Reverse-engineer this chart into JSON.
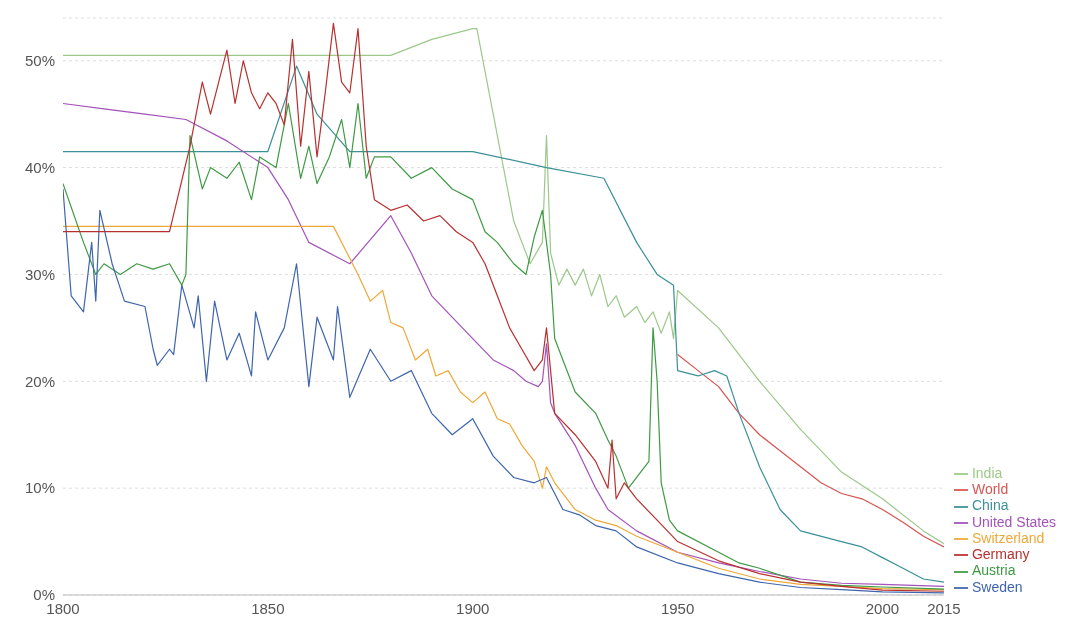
{
  "chart_data": {
    "type": "line",
    "xlim": [
      1800,
      2015
    ],
    "xticks": [
      1800,
      1850,
      1900,
      1950,
      2000,
      2015
    ],
    "ylim": [
      0,
      54
    ],
    "yticks": [
      {
        "value": 0,
        "label": "0%"
      },
      {
        "value": 10,
        "label": "10%"
      },
      {
        "value": 20,
        "label": "20%"
      },
      {
        "value": 30,
        "label": "30%"
      },
      {
        "value": 40,
        "label": "40%"
      },
      {
        "value": 50,
        "label": "50%"
      }
    ],
    "grid": "y",
    "legend": "right",
    "marker": "none",
    "line_style": "solid",
    "series": [
      {
        "name": "India",
        "color": "#9cc88a",
        "x": [
          1800,
          1880,
          1890,
          1900,
          1901,
          1905,
          1910,
          1914,
          1917,
          1918,
          1919,
          1921,
          1923,
          1925,
          1927,
          1929,
          1931,
          1933,
          1935,
          1937,
          1940,
          1942,
          1944,
          1946,
          1948,
          1949,
          1950,
          1960,
          1970,
          1980,
          1990,
          2000,
          2010,
          2015
        ],
        "values": [
          50.5,
          50.5,
          52,
          53,
          53,
          45,
          35,
          31,
          33,
          43,
          32,
          29,
          30.5,
          29,
          30.5,
          28,
          30,
          27,
          28,
          26,
          27,
          25.5,
          26.5,
          24.5,
          26.5,
          24,
          28.5,
          25,
          20,
          15.5,
          11.5,
          9,
          6,
          4.8
        ]
      },
      {
        "name": "World",
        "color": "#d65452",
        "x": [
          1950,
          1955,
          1960,
          1965,
          1970,
          1975,
          1980,
          1985,
          1990,
          1995,
          2000,
          2005,
          2010,
          2015
        ],
        "values": [
          22.5,
          21,
          19.5,
          17,
          15,
          13.5,
          12,
          10.5,
          9.5,
          9,
          8,
          6.8,
          5.5,
          4.5
        ]
      },
      {
        "name": "China",
        "color": "#3b9099",
        "x": [
          1800,
          1850,
          1857,
          1862,
          1870,
          1900,
          1918,
          1932,
          1940,
          1945,
          1949,
          1950,
          1955,
          1959,
          1962,
          1965,
          1970,
          1975,
          1980,
          1990,
          1995,
          2000,
          2005,
          2010,
          2015
        ],
        "values": [
          41.5,
          41.5,
          49.5,
          45,
          41.5,
          41.5,
          40,
          39,
          33,
          30,
          29,
          21,
          20.5,
          21,
          20.5,
          17,
          12,
          8,
          6,
          5,
          4.5,
          3.5,
          2.5,
          1.5,
          1.2
        ]
      },
      {
        "name": "United States",
        "color": "#a352b8",
        "x": [
          1800,
          1810,
          1820,
          1830,
          1840,
          1850,
          1855,
          1860,
          1870,
          1880,
          1885,
          1890,
          1900,
          1905,
          1910,
          1913,
          1916,
          1917,
          1918,
          1919,
          1920,
          1925,
          1930,
          1933,
          1940,
          1950,
          1960,
          1970,
          1980,
          1990,
          2000,
          2015
        ],
        "values": [
          46,
          45.5,
          45,
          44.5,
          42.5,
          40,
          37,
          33,
          31,
          35.5,
          32,
          28,
          24,
          22,
          21,
          20,
          19.5,
          20,
          23.5,
          18,
          17,
          14,
          10,
          8,
          6,
          4,
          3,
          2.2,
          1.5,
          1.1,
          1,
          0.8
        ]
      },
      {
        "name": "Switzerland",
        "color": "#eea838",
        "x": [
          1800,
          1866,
          1872,
          1875,
          1878,
          1880,
          1883,
          1886,
          1889,
          1891,
          1894,
          1897,
          1900,
          1903,
          1906,
          1909,
          1912,
          1915,
          1917,
          1918,
          1920,
          1925,
          1930,
          1935,
          1940,
          1950,
          1960,
          1970,
          1980,
          1990,
          2000,
          2015
        ],
        "values": [
          34.5,
          34.5,
          30,
          27.5,
          28.5,
          25.5,
          25,
          22,
          23,
          20.5,
          21,
          19,
          18,
          19,
          16.5,
          16,
          14,
          12.5,
          10,
          12,
          10.5,
          8,
          7,
          6.5,
          5.5,
          4,
          2.5,
          1.5,
          1,
          0.8,
          0.6,
          0.5
        ]
      },
      {
        "name": "Germany",
        "color": "#b8302f",
        "x": [
          1800,
          1826,
          1831,
          1834,
          1836,
          1838,
          1840,
          1842,
          1844,
          1846,
          1848,
          1850,
          1852,
          1854,
          1856,
          1858,
          1860,
          1862,
          1864,
          1866,
          1868,
          1870,
          1872,
          1874,
          1876,
          1880,
          1884,
          1888,
          1892,
          1896,
          1900,
          1903,
          1906,
          1909,
          1912,
          1915,
          1917,
          1918,
          1920,
          1925,
          1930,
          1933,
          1934,
          1935,
          1937,
          1940,
          1945,
          1950,
          1960,
          1970,
          1980,
          1990,
          2000,
          2015
        ],
        "values": [
          34,
          34,
          42,
          48,
          45,
          48,
          51,
          46,
          50,
          47,
          45.5,
          47,
          46,
          44,
          52,
          42,
          49,
          41,
          47,
          53.5,
          48,
          47,
          53,
          42,
          37,
          36,
          36.5,
          35,
          35.5,
          34,
          33,
          31,
          28,
          25,
          23,
          21,
          22,
          25,
          17,
          15,
          12.5,
          10,
          14.5,
          9,
          10.5,
          9,
          7,
          5,
          3.2,
          2,
          1.2,
          0.8,
          0.45,
          0.35
        ]
      },
      {
        "name": "Austria",
        "color": "#3f9a44",
        "x": [
          1800,
          1805,
          1808,
          1810,
          1814,
          1818,
          1822,
          1826,
          1829,
          1830,
          1831,
          1834,
          1836,
          1840,
          1843,
          1846,
          1848,
          1852,
          1855,
          1858,
          1860,
          1862,
          1865,
          1868,
          1870,
          1872,
          1874,
          1876,
          1880,
          1885,
          1890,
          1895,
          1900,
          1903,
          1906,
          1910,
          1913,
          1915,
          1917,
          1919,
          1920,
          1922,
          1925,
          1930,
          1933,
          1935,
          1938,
          1940,
          1943,
          1944,
          1945,
          1946,
          1948,
          1950,
          1960,
          1965,
          1970,
          1980,
          1990,
          2000,
          2015
        ],
        "values": [
          38.5,
          33,
          30,
          31,
          30,
          31,
          30.5,
          31,
          29,
          30,
          43,
          38,
          40,
          39,
          40.5,
          37,
          41,
          40,
          46,
          39,
          42,
          38.5,
          41,
          44.5,
          40,
          46,
          39,
          41,
          41,
          39,
          40,
          38,
          37,
          34,
          33,
          31,
          30,
          33.5,
          36,
          30,
          24,
          22,
          19,
          17,
          14.5,
          13,
          10,
          11,
          12.5,
          25,
          20,
          10.5,
          7,
          6,
          4,
          3,
          2.5,
          1.2,
          0.9,
          0.75,
          0.55
        ]
      },
      {
        "name": "Sweden",
        "color": "#3e65ad",
        "x": [
          1800,
          1802,
          1805,
          1807,
          1808,
          1809,
          1812,
          1815,
          1820,
          1822,
          1823,
          1826,
          1827,
          1829,
          1832,
          1833,
          1835,
          1837,
          1840,
          1843,
          1846,
          1847,
          1850,
          1854,
          1857,
          1860,
          1862,
          1866,
          1867,
          1870,
          1875,
          1880,
          1885,
          1890,
          1895,
          1900,
          1905,
          1910,
          1915,
          1918,
          1922,
          1926,
          1930,
          1935,
          1940,
          1950,
          1960,
          1970,
          1980,
          1990,
          2000,
          2015
        ],
        "values": [
          38,
          28,
          26.5,
          33,
          27.5,
          36,
          31,
          27.5,
          27,
          23,
          21.5,
          23,
          22.5,
          29,
          25,
          28,
          20,
          27.5,
          22,
          24.5,
          20.5,
          26.5,
          22,
          25,
          31,
          19.5,
          26,
          22,
          27,
          18.5,
          23,
          20,
          21,
          17,
          15,
          16.5,
          13,
          11,
          10.5,
          11,
          8,
          7.5,
          6.5,
          6,
          4.5,
          3,
          2,
          1.2,
          0.7,
          0.5,
          0.3,
          0.2
        ]
      }
    ]
  }
}
